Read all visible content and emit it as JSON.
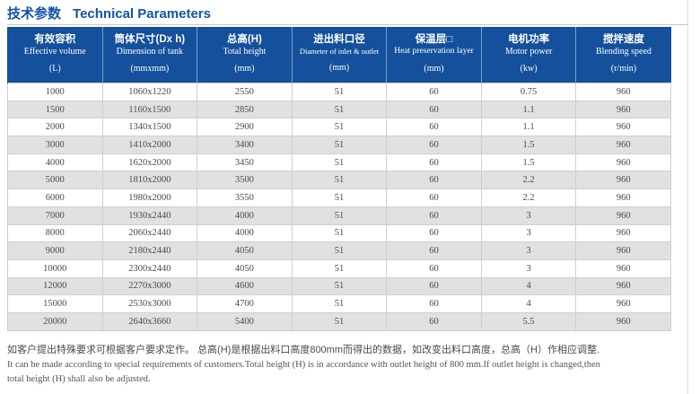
{
  "page": {
    "title_cn": "技术参数",
    "title_en": "Technical Parameters"
  },
  "table": {
    "columns": [
      {
        "cn": "有效容积",
        "en": "Effective volume",
        "unit": "(L)"
      },
      {
        "cn": "筒体尺寸(Dx h)",
        "en": "Dimension of tank",
        "unit": "(mmxmm)"
      },
      {
        "cn": "总高(H)",
        "en": "Total height",
        "unit": "(mm)"
      },
      {
        "cn": "进出料口径",
        "en": "Diameter of inlet & outlet",
        "unit": "(mm)"
      },
      {
        "cn": "保温层□",
        "en": "Heat preservation layer",
        "unit": "(mm)"
      },
      {
        "cn": "电机功率",
        "en": "Motor power",
        "unit": "(kw)"
      },
      {
        "cn": "搅拌速度",
        "en": "Blending speed",
        "unit": "(r/min)"
      }
    ],
    "rows": [
      [
        "1000",
        "1060x1220",
        "2550",
        "51",
        "60",
        "0.75",
        "960"
      ],
      [
        "1500",
        "1160x1500",
        "2850",
        "51",
        "60",
        "1.1",
        "960"
      ],
      [
        "2000",
        "1340x1500",
        "2900",
        "51",
        "60",
        "1.1",
        "960"
      ],
      [
        "3000",
        "1410x2000",
        "3400",
        "51",
        "60",
        "1.5",
        "960"
      ],
      [
        "4000",
        "1620x2000",
        "3450",
        "51",
        "60",
        "1.5",
        "960"
      ],
      [
        "5000",
        "1810x2000",
        "3500",
        "51",
        "60",
        "2.2",
        "960"
      ],
      [
        "6000",
        "1980x2000",
        "3550",
        "51",
        "60",
        "2.2",
        "960"
      ],
      [
        "7000",
        "1930x2440",
        "4000",
        "51",
        "60",
        "3",
        "960"
      ],
      [
        "8000",
        "2060x2440",
        "4000",
        "51",
        "60",
        "3",
        "960"
      ],
      [
        "9000",
        "2180x2440",
        "4050",
        "51",
        "60",
        "3",
        "960"
      ],
      [
        "10000",
        "2300x2440",
        "4050",
        "51",
        "60",
        "3",
        "960"
      ],
      [
        "12000",
        "2270x3000",
        "4600",
        "51",
        "60",
        "4",
        "960"
      ],
      [
        "15000",
        "2530x3000",
        "4700",
        "51",
        "60",
        "4",
        "960"
      ],
      [
        "20000",
        "2640x3660",
        "5400",
        "51",
        "60",
        "5.5",
        "960"
      ]
    ]
  },
  "notes": {
    "cn": "如客户提出特殊要求可根据客户要求定作。 总高(H)是根据出料口高度800mm而得出的数据，如改变出料口高度，总高（H）作相应调整.",
    "en_line1": "It can be made according to special requirements of customers.Total height (H) is in accordance with outlet height of 800 mm.If outlet height is changed,then",
    "en_line2": "total height (H) shall also be adjusted."
  },
  "colors": {
    "header_bg": "#14509B",
    "title_blue": "#1453A4",
    "row_alt": "#E1E1E1",
    "cell_border": "#CFCFCF"
  }
}
